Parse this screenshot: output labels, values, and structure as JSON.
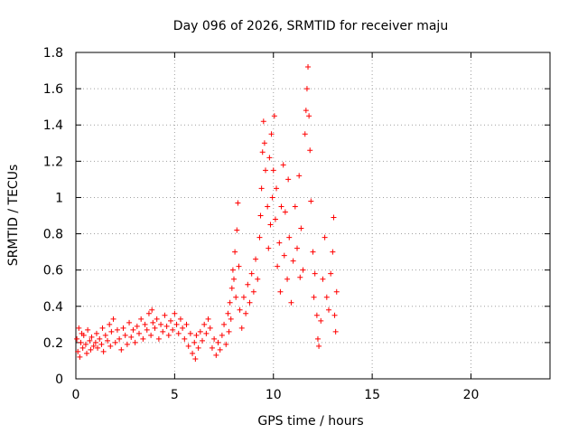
{
  "chart_data": {
    "type": "scatter",
    "title": "Day 096 of 2026, SRMTID for receiver maju",
    "xlabel": "GPS time / hours",
    "ylabel": "SRMTID / TECUs",
    "xlim": [
      0,
      24
    ],
    "ylim": [
      0,
      1.8
    ],
    "xticks": [
      0,
      5,
      10,
      15,
      20
    ],
    "xtick_labels": [
      "0",
      "5",
      "10",
      "15",
      "20"
    ],
    "yticks": [
      0,
      0.2,
      0.4,
      0.6,
      0.8,
      1,
      1.2,
      1.4,
      1.6,
      1.8
    ],
    "ytick_labels": [
      "0",
      "0.2",
      "0.4",
      "0.6",
      "0.8",
      "1",
      "1.2",
      "1.4",
      "1.6",
      "1.8"
    ],
    "grid": true,
    "marker": "+",
    "color": "#ff0000",
    "series": [
      {
        "name": "SRMTID",
        "points": [
          [
            0.05,
            0.22
          ],
          [
            0.1,
            0.15
          ],
          [
            0.15,
            0.28
          ],
          [
            0.2,
            0.12
          ],
          [
            0.25,
            0.2
          ],
          [
            0.3,
            0.25
          ],
          [
            0.35,
            0.17
          ],
          [
            0.4,
            0.24
          ],
          [
            0.5,
            0.19
          ],
          [
            0.55,
            0.14
          ],
          [
            0.6,
            0.27
          ],
          [
            0.7,
            0.21
          ],
          [
            0.75,
            0.16
          ],
          [
            0.8,
            0.23
          ],
          [
            0.9,
            0.18
          ],
          [
            1.0,
            0.2
          ],
          [
            1.05,
            0.25
          ],
          [
            1.1,
            0.17
          ],
          [
            1.2,
            0.22
          ],
          [
            1.3,
            0.19
          ],
          [
            1.35,
            0.28
          ],
          [
            1.4,
            0.15
          ],
          [
            1.5,
            0.24
          ],
          [
            1.6,
            0.21
          ],
          [
            1.7,
            0.3
          ],
          [
            1.75,
            0.18
          ],
          [
            1.8,
            0.26
          ],
          [
            1.9,
            0.33
          ],
          [
            2.0,
            0.2
          ],
          [
            2.1,
            0.27
          ],
          [
            2.2,
            0.22
          ],
          [
            2.3,
            0.16
          ],
          [
            2.4,
            0.28
          ],
          [
            2.5,
            0.24
          ],
          [
            2.6,
            0.19
          ],
          [
            2.7,
            0.31
          ],
          [
            2.8,
            0.23
          ],
          [
            2.9,
            0.27
          ],
          [
            3.0,
            0.2
          ],
          [
            3.1,
            0.29
          ],
          [
            3.2,
            0.25
          ],
          [
            3.3,
            0.33
          ],
          [
            3.4,
            0.22
          ],
          [
            3.5,
            0.3
          ],
          [
            3.6,
            0.27
          ],
          [
            3.7,
            0.36
          ],
          [
            3.8,
            0.24
          ],
          [
            3.85,
            0.38
          ],
          [
            3.9,
            0.31
          ],
          [
            4.0,
            0.28
          ],
          [
            4.1,
            0.33
          ],
          [
            4.2,
            0.22
          ],
          [
            4.3,
            0.3
          ],
          [
            4.4,
            0.26
          ],
          [
            4.5,
            0.35
          ],
          [
            4.6,
            0.29
          ],
          [
            4.7,
            0.24
          ],
          [
            4.8,
            0.32
          ],
          [
            4.9,
            0.27
          ],
          [
            5.0,
            0.36
          ],
          [
            5.1,
            0.3
          ],
          [
            5.2,
            0.25
          ],
          [
            5.3,
            0.33
          ],
          [
            5.4,
            0.28
          ],
          [
            5.5,
            0.22
          ],
          [
            5.6,
            0.3
          ],
          [
            5.7,
            0.18
          ],
          [
            5.8,
            0.25
          ],
          [
            5.9,
            0.14
          ],
          [
            6.0,
            0.2
          ],
          [
            6.05,
            0.11
          ],
          [
            6.1,
            0.24
          ],
          [
            6.2,
            0.17
          ],
          [
            6.3,
            0.26
          ],
          [
            6.4,
            0.21
          ],
          [
            6.5,
            0.3
          ],
          [
            6.6,
            0.25
          ],
          [
            6.7,
            0.33
          ],
          [
            6.8,
            0.28
          ],
          [
            6.9,
            0.17
          ],
          [
            7.0,
            0.22
          ],
          [
            7.1,
            0.13
          ],
          [
            7.2,
            0.2
          ],
          [
            7.3,
            0.16
          ],
          [
            7.4,
            0.24
          ],
          [
            7.5,
            0.3
          ],
          [
            7.6,
            0.19
          ],
          [
            7.7,
            0.36
          ],
          [
            7.75,
            0.26
          ],
          [
            7.8,
            0.42
          ],
          [
            7.85,
            0.33
          ],
          [
            7.9,
            0.5
          ],
          [
            7.95,
            0.6
          ],
          [
            8.0,
            0.55
          ],
          [
            8.05,
            0.7
          ],
          [
            8.1,
            0.45
          ],
          [
            8.15,
            0.82
          ],
          [
            8.2,
            0.97
          ],
          [
            8.25,
            0.62
          ],
          [
            8.3,
            0.38
          ],
          [
            8.4,
            0.28
          ],
          [
            8.5,
            0.45
          ],
          [
            8.6,
            0.36
          ],
          [
            8.7,
            0.52
          ],
          [
            8.8,
            0.42
          ],
          [
            8.9,
            0.58
          ],
          [
            9.0,
            0.48
          ],
          [
            9.1,
            0.66
          ],
          [
            9.2,
            0.55
          ],
          [
            9.3,
            0.78
          ],
          [
            9.35,
            0.9
          ],
          [
            9.4,
            1.05
          ],
          [
            9.45,
            1.25
          ],
          [
            9.5,
            1.42
          ],
          [
            9.55,
            1.3
          ],
          [
            9.6,
            1.15
          ],
          [
            9.7,
            0.95
          ],
          [
            9.75,
            0.72
          ],
          [
            9.8,
            1.22
          ],
          [
            9.85,
            0.85
          ],
          [
            9.9,
            1.35
          ],
          [
            9.95,
            1.0
          ],
          [
            10.0,
            1.15
          ],
          [
            10.05,
            1.45
          ],
          [
            10.1,
            0.88
          ],
          [
            10.15,
            1.05
          ],
          [
            10.2,
            0.62
          ],
          [
            10.3,
            0.75
          ],
          [
            10.35,
            0.48
          ],
          [
            10.4,
            0.95
          ],
          [
            10.5,
            1.18
          ],
          [
            10.55,
            0.68
          ],
          [
            10.6,
            0.92
          ],
          [
            10.7,
            0.55
          ],
          [
            10.75,
            1.1
          ],
          [
            10.8,
            0.78
          ],
          [
            10.9,
            0.42
          ],
          [
            11.0,
            0.65
          ],
          [
            11.1,
            0.95
          ],
          [
            11.2,
            0.72
          ],
          [
            11.3,
            1.12
          ],
          [
            11.35,
            0.56
          ],
          [
            11.4,
            0.83
          ],
          [
            11.5,
            0.6
          ],
          [
            11.6,
            1.35
          ],
          [
            11.65,
            1.48
          ],
          [
            11.7,
            1.6
          ],
          [
            11.75,
            1.72
          ],
          [
            11.8,
            1.45
          ],
          [
            11.85,
            1.26
          ],
          [
            11.9,
            0.98
          ],
          [
            12.0,
            0.7
          ],
          [
            12.05,
            0.45
          ],
          [
            12.1,
            0.58
          ],
          [
            12.2,
            0.35
          ],
          [
            12.25,
            0.22
          ],
          [
            12.3,
            0.18
          ],
          [
            12.4,
            0.32
          ],
          [
            12.5,
            0.55
          ],
          [
            12.6,
            0.78
          ],
          [
            12.7,
            0.45
          ],
          [
            12.8,
            0.38
          ],
          [
            12.9,
            0.58
          ],
          [
            13.0,
            0.7
          ],
          [
            13.05,
            0.89
          ],
          [
            13.1,
            0.35
          ],
          [
            13.15,
            0.26
          ],
          [
            13.2,
            0.48
          ]
        ]
      }
    ]
  }
}
